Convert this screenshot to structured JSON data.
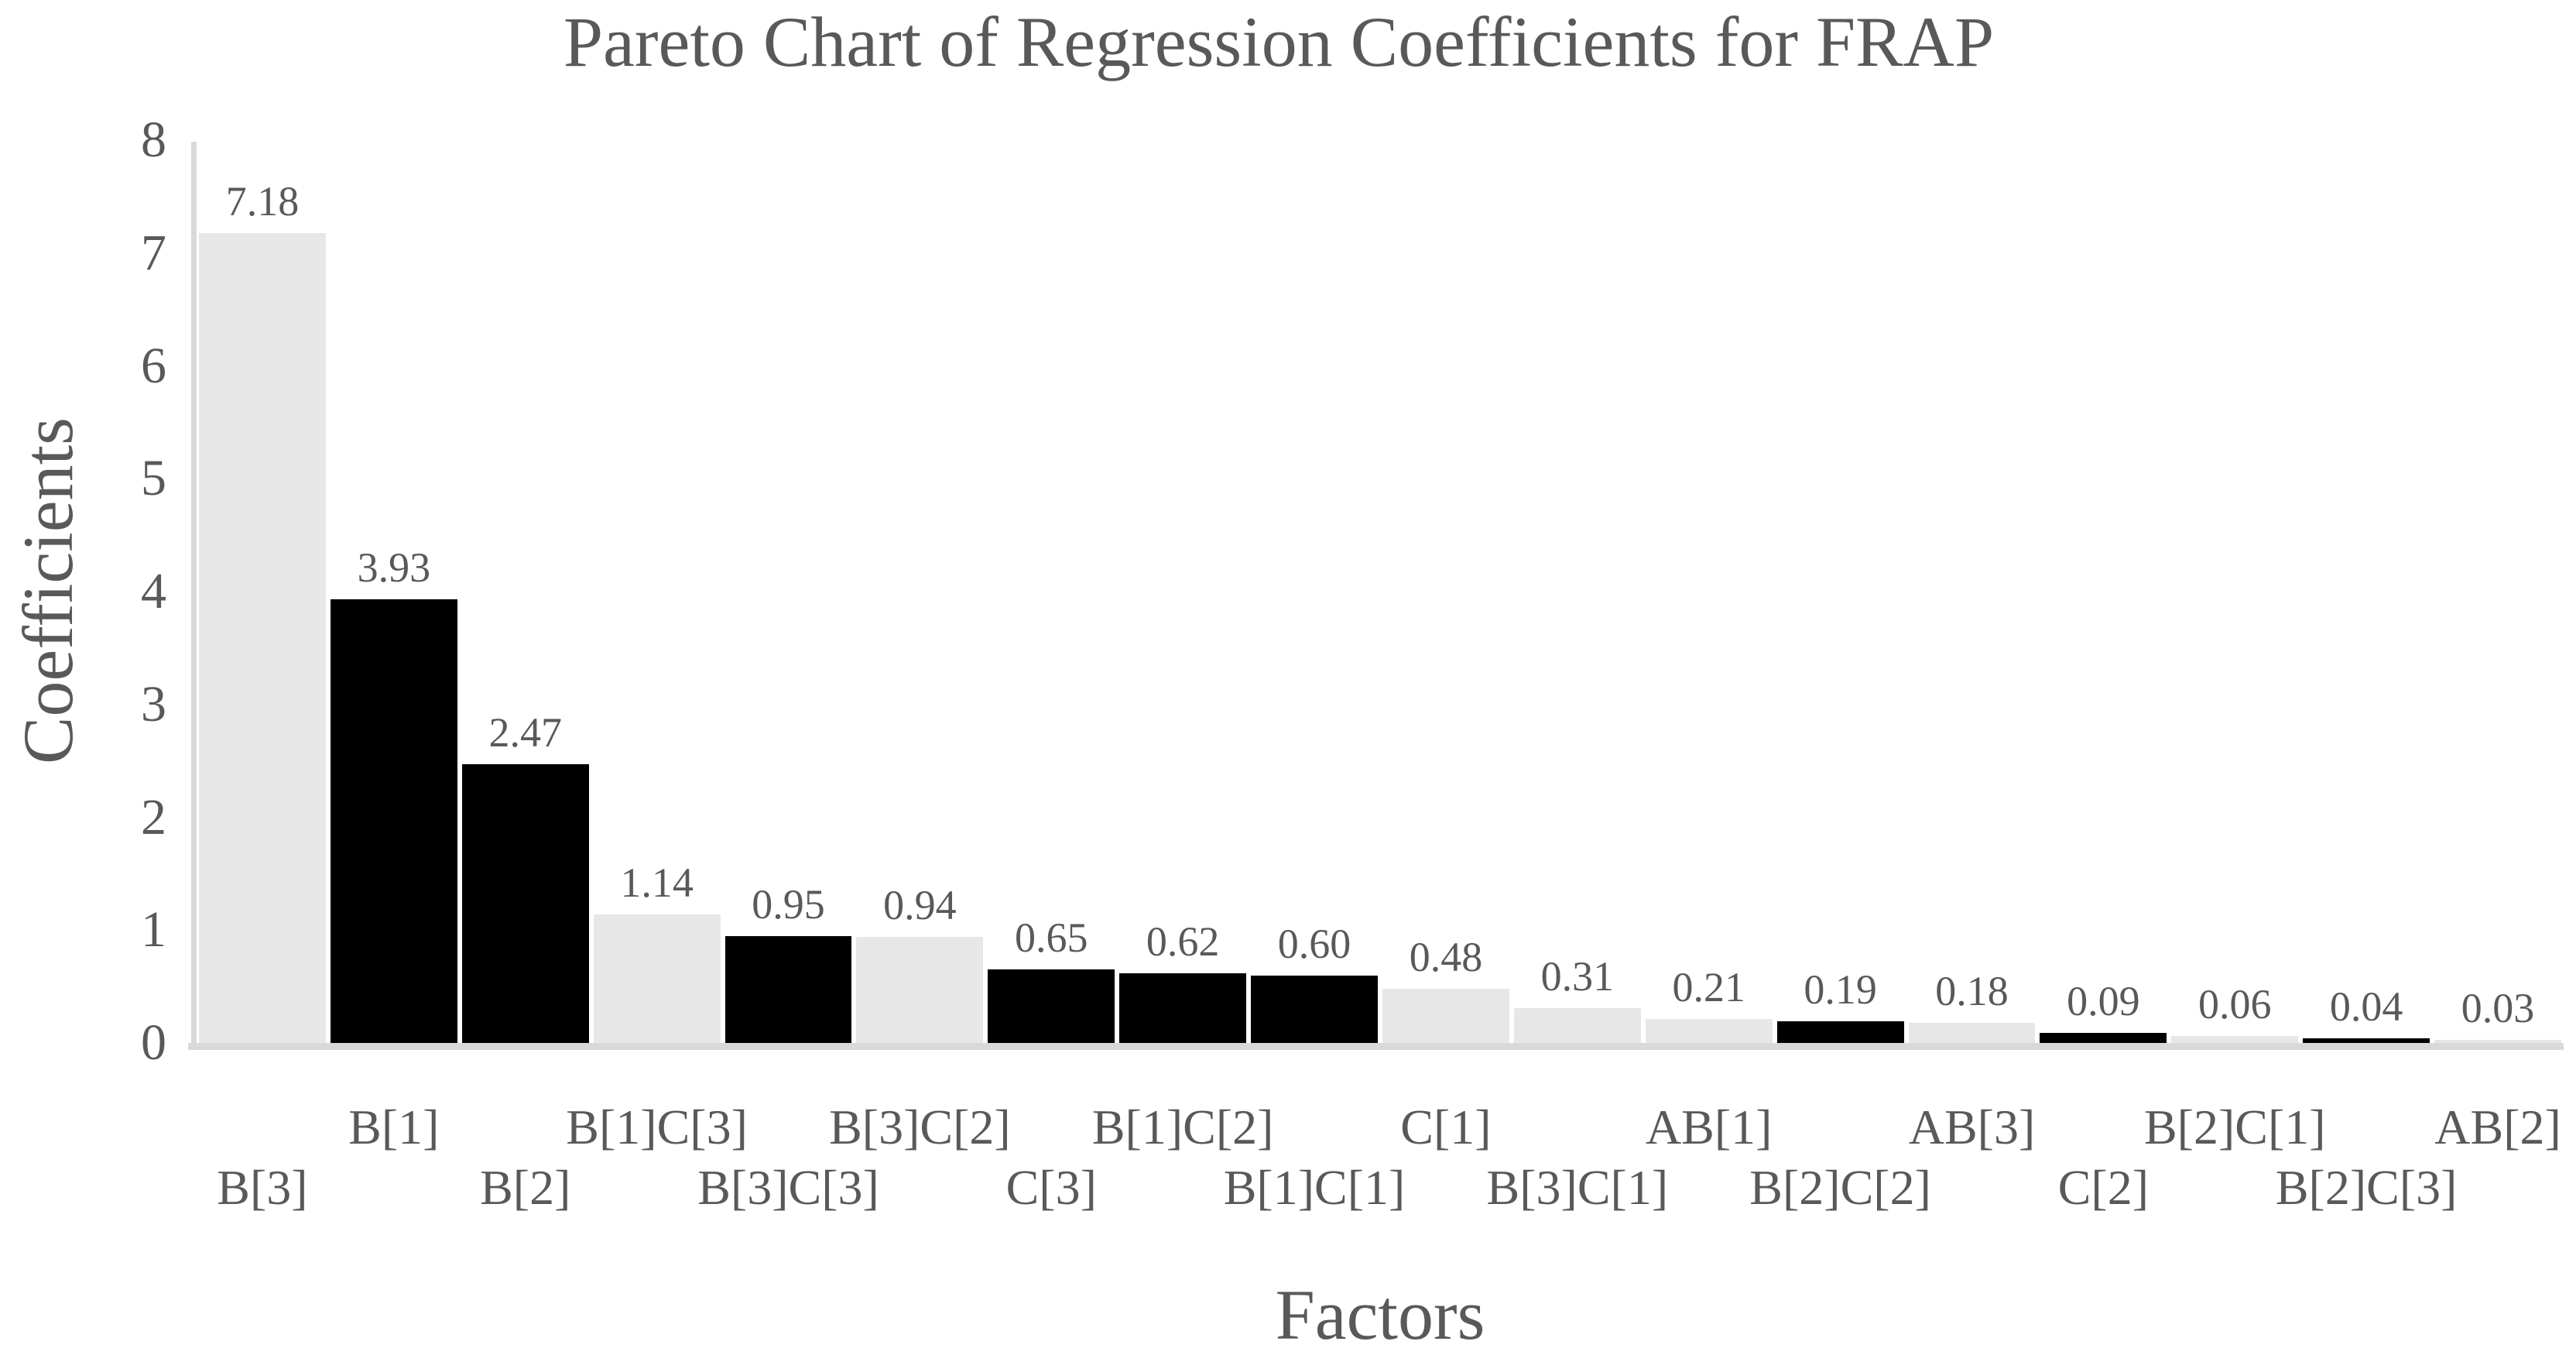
{
  "chart_data": {
    "type": "bar",
    "title": "Pareto Chart of Regression Coefficients for FRAP",
    "xlabel": "Factors",
    "ylabel": "Coefficients",
    "categories": [
      "B[3]",
      "B[1]",
      "B[2]",
      "B[1]C[3]",
      "B[3]C[3]",
      "B[3]C[2]",
      "C[3]",
      "B[1]C[2]",
      "B[1]C[1]",
      "C[1]",
      "B[3]C[1]",
      "AB[1]",
      "B[2]C[2]",
      "AB[3]",
      "C[2]",
      "B[2]C[1]",
      "B[2]C[3]",
      "AB[2]"
    ],
    "values": [
      7.18,
      3.93,
      2.47,
      1.14,
      0.95,
      0.94,
      0.65,
      0.62,
      0.6,
      0.48,
      0.31,
      0.21,
      0.19,
      0.18,
      0.09,
      0.06,
      0.04,
      0.03
    ],
    "value_labels": [
      "7.18",
      "3.93",
      "2.47",
      "1.14",
      "0.95",
      "0.94",
      "0.65",
      "0.62",
      "0.60",
      "0.48",
      "0.31",
      "0.21",
      "0.19",
      "0.18",
      "0.09",
      "0.06",
      "0.04",
      "0.03"
    ],
    "bar_colors": [
      "light",
      "dark",
      "dark",
      "light",
      "dark",
      "light",
      "dark",
      "dark",
      "dark",
      "light",
      "light",
      "light",
      "dark",
      "light",
      "dark",
      "light",
      "dark",
      "light"
    ],
    "ylim": [
      0,
      8
    ],
    "yticks": [
      "0",
      "1",
      "2",
      "3",
      "4",
      "5",
      "6",
      "7",
      "8"
    ],
    "grid": false,
    "legend": "none",
    "label_layout": "x-labels staggered in two rows: even-index categories lower row, odd-index categories upper row",
    "colors": {
      "bar_light": "#e8e7e7",
      "bar_dark": "#000000",
      "text": "#595959",
      "axis_line": "#d9d9d9"
    }
  }
}
